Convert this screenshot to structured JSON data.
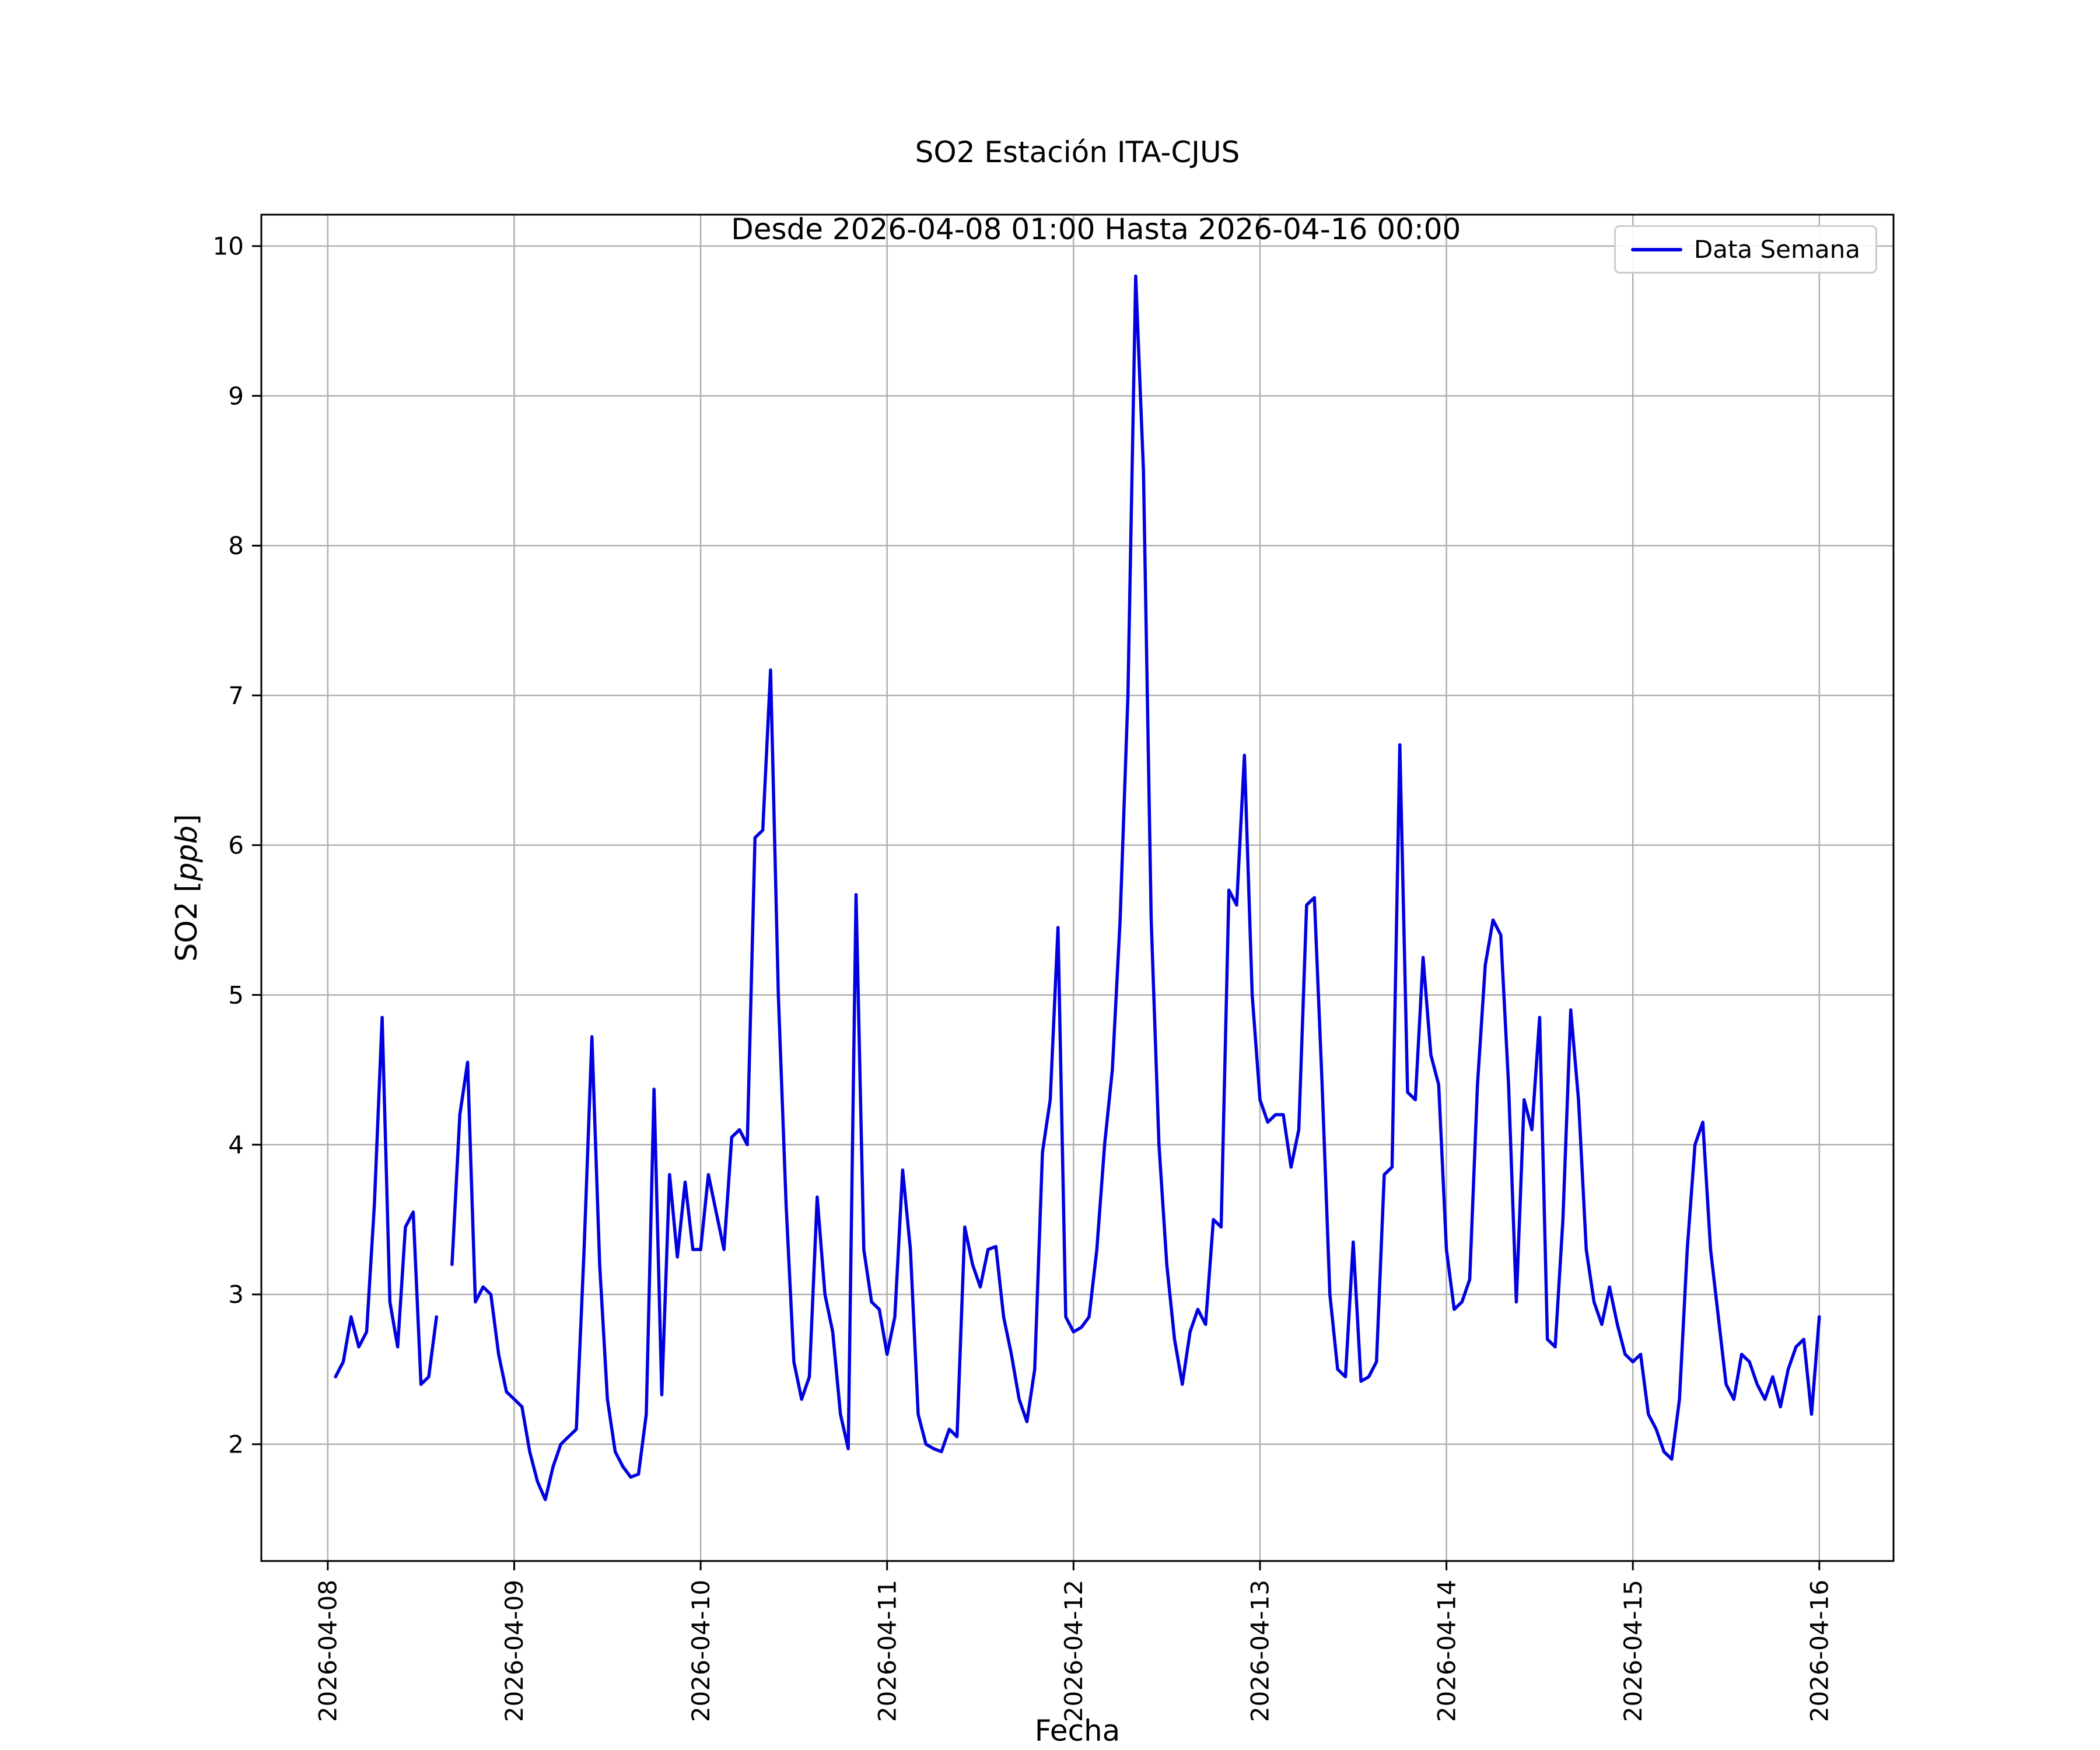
{
  "title": {
    "line1": "SO2 Estación ITA-CJUS",
    "line2": "Desde 2026-04-08 01:00 Hasta 2026-04-16 00:00"
  },
  "axes": {
    "xlabel": "Fecha",
    "ylabel_prefix": "SO2 [",
    "ylabel_italic": "ppb",
    "ylabel_suffix": "]"
  },
  "legend": {
    "label": "Data Semana"
  },
  "chart_data": {
    "type": "line",
    "title": "SO2 Estación ITA-CJUS\nDesde 2026-04-08 01:00 Hasta 2026-04-16 00:00",
    "xlabel": "Fecha",
    "ylabel": "SO2 [ppb]",
    "grid": true,
    "legend_position": "upper right",
    "x_ticks": {
      "labels": [
        "2026-04-08",
        "2026-04-09",
        "2026-04-10",
        "2026-04-11",
        "2026-04-12",
        "2026-04-13",
        "2026-04-14",
        "2026-04-15",
        "2026-04-16"
      ],
      "hours": [
        0,
        24,
        48,
        72,
        96,
        120,
        144,
        168,
        192
      ]
    },
    "y_ticks": [
      2,
      3,
      4,
      5,
      6,
      7,
      8,
      9,
      10
    ],
    "xlim_hours": [
      -8.55,
      201.55
    ],
    "ylim": [
      1.22,
      10.21
    ],
    "series": [
      {
        "name": "Data Semana",
        "color": "#0000e0",
        "start": "2026-04-08 01:00",
        "interval_hours": 1,
        "values": [
          2.45,
          2.55,
          2.85,
          2.65,
          2.75,
          3.6,
          4.85,
          2.95,
          2.65,
          3.45,
          3.55,
          2.4,
          2.45,
          2.85,
          null,
          3.2,
          4.2,
          4.55,
          2.95,
          3.05,
          3.0,
          2.6,
          2.35,
          2.3,
          2.25,
          1.95,
          1.75,
          1.63,
          1.85,
          2.0,
          2.05,
          2.1,
          3.3,
          4.72,
          3.2,
          2.3,
          1.95,
          1.85,
          1.78,
          1.8,
          2.2,
          4.37,
          2.33,
          3.8,
          3.25,
          3.75,
          3.3,
          3.3,
          3.8,
          3.55,
          3.3,
          4.05,
          4.1,
          4.0,
          6.05,
          6.1,
          7.17,
          5.0,
          3.6,
          2.55,
          2.3,
          2.45,
          3.65,
          3.0,
          2.75,
          2.2,
          1.97,
          5.67,
          3.3,
          2.95,
          2.9,
          2.6,
          2.85,
          3.83,
          3.3,
          2.2,
          2.0,
          1.97,
          1.95,
          2.1,
          2.05,
          3.45,
          3.2,
          3.05,
          3.3,
          3.32,
          2.85,
          2.6,
          2.3,
          2.15,
          2.5,
          3.95,
          4.3,
          5.45,
          2.85,
          2.75,
          2.78,
          2.85,
          3.3,
          4.0,
          4.5,
          5.5,
          7.0,
          9.8,
          8.5,
          5.5,
          4.0,
          3.2,
          2.7,
          2.4,
          2.75,
          2.9,
          2.8,
          3.5,
          3.45,
          5.7,
          5.6,
          6.6,
          5.0,
          4.3,
          4.15,
          4.2,
          4.2,
          3.85,
          4.1,
          5.6,
          5.65,
          4.4,
          3.0,
          2.5,
          2.45,
          3.35,
          2.42,
          2.45,
          2.55,
          3.8,
          3.85,
          6.67,
          4.35,
          4.3,
          5.25,
          4.6,
          4.4,
          3.3,
          2.9,
          2.95,
          3.1,
          4.4,
          5.2,
          5.5,
          5.4,
          4.4,
          2.95,
          4.3,
          4.1,
          4.85,
          2.7,
          2.65,
          3.5,
          4.9,
          4.3,
          3.3,
          2.95,
          2.8,
          3.05,
          2.8,
          2.6,
          2.55,
          2.6,
          2.2,
          2.1,
          1.95,
          1.9,
          2.3,
          3.3,
          4.0,
          4.15,
          3.3,
          2.85,
          2.4,
          2.3,
          2.6,
          2.55,
          2.4,
          2.3,
          2.45,
          2.25,
          2.5,
          2.65,
          2.7,
          2.2,
          2.85
        ]
      }
    ]
  }
}
